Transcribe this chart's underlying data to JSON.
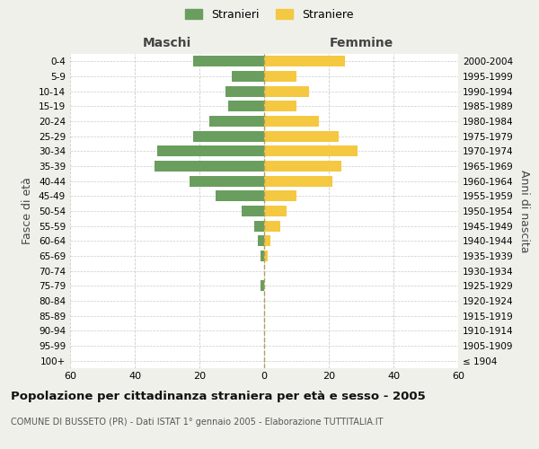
{
  "age_groups": [
    "100+",
    "95-99",
    "90-94",
    "85-89",
    "80-84",
    "75-79",
    "70-74",
    "65-69",
    "60-64",
    "55-59",
    "50-54",
    "45-49",
    "40-44",
    "35-39",
    "30-34",
    "25-29",
    "20-24",
    "15-19",
    "10-14",
    "5-9",
    "0-4"
  ],
  "birth_years": [
    "≤ 1904",
    "1905-1909",
    "1910-1914",
    "1915-1919",
    "1920-1924",
    "1925-1929",
    "1930-1934",
    "1935-1939",
    "1940-1944",
    "1945-1949",
    "1950-1954",
    "1955-1959",
    "1960-1964",
    "1965-1969",
    "1970-1974",
    "1975-1979",
    "1980-1984",
    "1985-1989",
    "1990-1994",
    "1995-1999",
    "2000-2004"
  ],
  "maschi": [
    0,
    0,
    0,
    0,
    0,
    1,
    0,
    1,
    2,
    3,
    7,
    15,
    23,
    34,
    33,
    22,
    17,
    11,
    12,
    10,
    22
  ],
  "femmine": [
    0,
    0,
    0,
    0,
    0,
    0,
    0,
    1,
    2,
    5,
    7,
    10,
    21,
    24,
    29,
    23,
    17,
    10,
    14,
    10,
    25
  ],
  "maschi_color": "#6a9e5e",
  "femmine_color": "#f5c842",
  "background_color": "#f0f0eb",
  "plot_bg_color": "#ffffff",
  "title": "Popolazione per cittadinanza straniera per età e sesso - 2005",
  "subtitle": "COMUNE DI BUSSETO (PR) - Dati ISTAT 1° gennaio 2005 - Elaborazione TUTTITALIA.IT",
  "legend_maschi": "Stranieri",
  "legend_femmine": "Straniere",
  "ylabel_left": "Fasce di età",
  "ylabel_right": "Anni di nascita",
  "header_left": "Maschi",
  "header_right": "Femmine",
  "xlim": 60
}
